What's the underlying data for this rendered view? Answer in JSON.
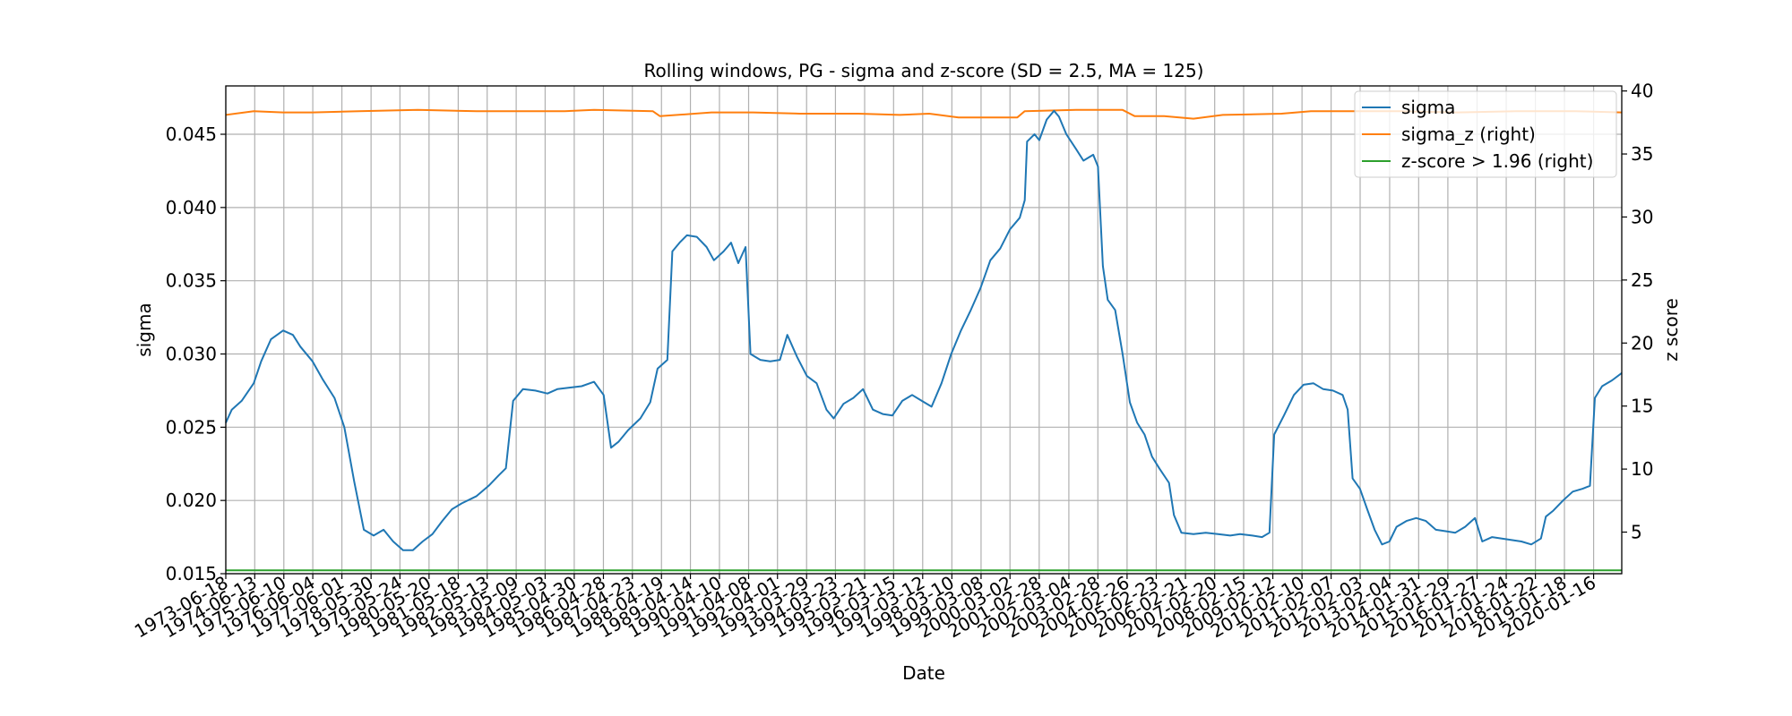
{
  "chart_data": {
    "type": "line",
    "title": "Rolling windows, PG - sigma and z-score (SD = 2.5, MA = 125)",
    "xlabel": "Date",
    "ylabel": "sigma",
    "ylabel_right": "z score",
    "ylim": [
      0.015,
      0.0483
    ],
    "ylim_right": [
      1.7,
      40.4
    ],
    "y_ticks": [
      "0.015",
      "0.020",
      "0.025",
      "0.030",
      "0.035",
      "0.040",
      "0.045"
    ],
    "y_ticks_right": [
      "5",
      "10",
      "15",
      "20",
      "25",
      "30",
      "35",
      "40"
    ],
    "x_ticks": [
      "1973-06-18",
      "1974-06-13",
      "1975-06-10",
      "1976-06-04",
      "1977-06-01",
      "1978-05-30",
      "1979-05-24",
      "1980-05-20",
      "1981-05-18",
      "1982-05-13",
      "1983-05-09",
      "1984-05-03",
      "1985-04-30",
      "1986-04-28",
      "1987-04-23",
      "1988-04-19",
      "1989-04-14",
      "1990-04-10",
      "1991-04-08",
      "1992-04-01",
      "1993-03-29",
      "1994-03-23",
      "1995-03-21",
      "1996-03-15",
      "1997-03-12",
      "1998-03-10",
      "1999-03-08",
      "2000-03-02",
      "2001-02-28",
      "2002-03-04",
      "2003-02-28",
      "2004-02-26",
      "2005-02-23",
      "2006-02-21",
      "2007-02-20",
      "2008-02-15",
      "2009-02-12",
      "2010-02-10",
      "2011-02-07",
      "2012-02-03",
      "2013-02-04",
      "2014-01-31",
      "2015-01-29",
      "2016-01-27",
      "2017-01-24",
      "2018-01-22",
      "2019-01-18",
      "2020-01-16"
    ],
    "x_range": [
      "1973-06-18",
      "2020-12-31"
    ],
    "grid": true,
    "legend_position": "top-right",
    "series": [
      {
        "name": "sigma",
        "axis": "left",
        "color": "#1f77b4",
        "points": [
          [
            "1973-06-18",
            0.0253
          ],
          [
            "1973-09-01",
            0.0262
          ],
          [
            "1974-01-01",
            0.0268
          ],
          [
            "1974-06-01",
            0.028
          ],
          [
            "1974-09-01",
            0.0295
          ],
          [
            "1975-01-01",
            0.031
          ],
          [
            "1975-06-01",
            0.0316
          ],
          [
            "1975-10-01",
            0.0313
          ],
          [
            "1976-01-01",
            0.0305
          ],
          [
            "1976-06-01",
            0.0295
          ],
          [
            "1976-10-01",
            0.0283
          ],
          [
            "1977-03-01",
            0.027
          ],
          [
            "1977-07-01",
            0.025
          ],
          [
            "1977-11-01",
            0.0213
          ],
          [
            "1978-03-01",
            0.018
          ],
          [
            "1978-07-01",
            0.0176
          ],
          [
            "1978-11-01",
            0.018
          ],
          [
            "1979-03-01",
            0.0172
          ],
          [
            "1979-07-01",
            0.0166
          ],
          [
            "1979-11-01",
            0.0166
          ],
          [
            "1980-03-01",
            0.0172
          ],
          [
            "1980-07-01",
            0.0177
          ],
          [
            "1980-11-01",
            0.0186
          ],
          [
            "1981-03-01",
            0.0194
          ],
          [
            "1981-07-01",
            0.0198
          ],
          [
            "1982-01-01",
            0.0203
          ],
          [
            "1982-06-01",
            0.021
          ],
          [
            "1982-10-01",
            0.0217
          ],
          [
            "1983-01-01",
            0.0222
          ],
          [
            "1983-04-01",
            0.0268
          ],
          [
            "1983-08-01",
            0.0276
          ],
          [
            "1984-01-01",
            0.0275
          ],
          [
            "1984-06-01",
            0.0273
          ],
          [
            "1984-10-01",
            0.0276
          ],
          [
            "1985-03-01",
            0.0277
          ],
          [
            "1985-08-01",
            0.0278
          ],
          [
            "1986-01-01",
            0.0281
          ],
          [
            "1986-05-01",
            0.0272
          ],
          [
            "1986-08-01",
            0.0236
          ],
          [
            "1986-11-01",
            0.024
          ],
          [
            "1987-03-01",
            0.0248
          ],
          [
            "1987-08-01",
            0.0256
          ],
          [
            "1987-12-01",
            0.0267
          ],
          [
            "1988-03-01",
            0.029
          ],
          [
            "1988-07-01",
            0.0296
          ],
          [
            "1988-09-01",
            0.037
          ],
          [
            "1988-12-01",
            0.0376
          ],
          [
            "1989-03-01",
            0.0381
          ],
          [
            "1989-07-01",
            0.038
          ],
          [
            "1989-11-01",
            0.0373
          ],
          [
            "1990-02-01",
            0.0364
          ],
          [
            "1990-06-01",
            0.037
          ],
          [
            "1990-09-01",
            0.0376
          ],
          [
            "1990-12-01",
            0.0362
          ],
          [
            "1991-03-01",
            0.0373
          ],
          [
            "1991-05-01",
            0.03
          ],
          [
            "1991-09-01",
            0.0296
          ],
          [
            "1992-01-01",
            0.0295
          ],
          [
            "1992-05-01",
            0.0296
          ],
          [
            "1992-08-01",
            0.0313
          ],
          [
            "1992-12-01",
            0.0298
          ],
          [
            "1993-04-01",
            0.0285
          ],
          [
            "1993-08-01",
            0.028
          ],
          [
            "1993-12-01",
            0.0262
          ],
          [
            "1994-03-01",
            0.0256
          ],
          [
            "1994-07-01",
            0.0266
          ],
          [
            "1994-11-01",
            0.027
          ],
          [
            "1995-03-01",
            0.0276
          ],
          [
            "1995-07-01",
            0.0262
          ],
          [
            "1995-11-01",
            0.0259
          ],
          [
            "1996-03-01",
            0.0258
          ],
          [
            "1996-07-01",
            0.0268
          ],
          [
            "1996-11-01",
            0.0272
          ],
          [
            "1997-03-01",
            0.0268
          ],
          [
            "1997-07-01",
            0.0264
          ],
          [
            "1997-11-01",
            0.028
          ],
          [
            "1998-03-01",
            0.03
          ],
          [
            "1998-07-01",
            0.0316
          ],
          [
            "1998-11-01",
            0.033
          ],
          [
            "1999-03-01",
            0.0345
          ],
          [
            "1999-07-01",
            0.0364
          ],
          [
            "1999-11-01",
            0.0372
          ],
          [
            "2000-03-01",
            0.0385
          ],
          [
            "2000-07-01",
            0.0393
          ],
          [
            "2000-09-01",
            0.0405
          ],
          [
            "2000-10-01",
            0.0445
          ],
          [
            "2001-01-01",
            0.045
          ],
          [
            "2001-03-01",
            0.0446
          ],
          [
            "2001-06-01",
            0.046
          ],
          [
            "2001-09-01",
            0.0466
          ],
          [
            "2001-11-01",
            0.0462
          ],
          [
            "2002-02-01",
            0.045
          ],
          [
            "2002-06-01",
            0.044
          ],
          [
            "2002-09-01",
            0.0432
          ],
          [
            "2003-01-01",
            0.0436
          ],
          [
            "2003-03-01",
            0.0428
          ],
          [
            "2003-05-01",
            0.036
          ],
          [
            "2003-07-01",
            0.0337
          ],
          [
            "2003-10-01",
            0.033
          ],
          [
            "2004-01-01",
            0.03
          ],
          [
            "2004-04-01",
            0.0267
          ],
          [
            "2004-07-01",
            0.0253
          ],
          [
            "2004-10-01",
            0.0245
          ],
          [
            "2005-01-01",
            0.023
          ],
          [
            "2005-04-01",
            0.0222
          ],
          [
            "2005-08-01",
            0.0212
          ],
          [
            "2005-10-01",
            0.019
          ],
          [
            "2006-01-01",
            0.0178
          ],
          [
            "2006-06-01",
            0.0177
          ],
          [
            "2006-11-01",
            0.0178
          ],
          [
            "2007-04-01",
            0.0177
          ],
          [
            "2007-09-01",
            0.0176
          ],
          [
            "2008-01-01",
            0.0177
          ],
          [
            "2008-06-01",
            0.0176
          ],
          [
            "2008-10-01",
            0.0175
          ],
          [
            "2009-01-01",
            0.0178
          ],
          [
            "2009-03-01",
            0.0245
          ],
          [
            "2009-07-01",
            0.0258
          ],
          [
            "2009-11-01",
            0.0272
          ],
          [
            "2010-03-01",
            0.0279
          ],
          [
            "2010-07-01",
            0.028
          ],
          [
            "2010-11-01",
            0.0276
          ],
          [
            "2011-03-01",
            0.0275
          ],
          [
            "2011-07-01",
            0.0272
          ],
          [
            "2011-09-01",
            0.0262
          ],
          [
            "2011-11-01",
            0.0215
          ],
          [
            "2012-02-01",
            0.0208
          ],
          [
            "2012-05-01",
            0.0194
          ],
          [
            "2012-08-01",
            0.018
          ],
          [
            "2012-11-01",
            0.017
          ],
          [
            "2013-02-01",
            0.0172
          ],
          [
            "2013-05-01",
            0.0182
          ],
          [
            "2013-09-01",
            0.0186
          ],
          [
            "2014-01-01",
            0.0188
          ],
          [
            "2014-05-01",
            0.0186
          ],
          [
            "2014-09-01",
            0.018
          ],
          [
            "2015-01-01",
            0.0179
          ],
          [
            "2015-05-01",
            0.0178
          ],
          [
            "2015-09-01",
            0.0182
          ],
          [
            "2016-01-01",
            0.0188
          ],
          [
            "2016-04-01",
            0.0172
          ],
          [
            "2016-08-01",
            0.0175
          ],
          [
            "2016-12-01",
            0.0174
          ],
          [
            "2017-04-01",
            0.0173
          ],
          [
            "2017-08-01",
            0.0172
          ],
          [
            "2017-12-01",
            0.017
          ],
          [
            "2018-04-01",
            0.0174
          ],
          [
            "2018-06-01",
            0.0189
          ],
          [
            "2018-09-01",
            0.0193
          ],
          [
            "2019-01-01",
            0.02
          ],
          [
            "2019-05-01",
            0.0206
          ],
          [
            "2019-09-01",
            0.0208
          ],
          [
            "2019-12-01",
            0.021
          ],
          [
            "2020-02-01",
            0.027
          ],
          [
            "2020-05-01",
            0.0278
          ],
          [
            "2020-09-01",
            0.0282
          ],
          [
            "2020-12-31",
            0.0287
          ]
        ]
      },
      {
        "name": "sigma_z (right)",
        "axis": "right",
        "color": "#ff7f0e",
        "points": [
          [
            "1973-06-18",
            38.1
          ],
          [
            "1974-06-01",
            38.4
          ],
          [
            "1975-06-01",
            38.3
          ],
          [
            "1976-06-01",
            38.3
          ],
          [
            "1978-01-01",
            38.4
          ],
          [
            "1980-01-01",
            38.5
          ],
          [
            "1982-01-01",
            38.4
          ],
          [
            "1985-01-01",
            38.4
          ],
          [
            "1986-01-01",
            38.5
          ],
          [
            "1988-01-01",
            38.4
          ],
          [
            "1988-04-01",
            38.0
          ],
          [
            "1990-01-01",
            38.3
          ],
          [
            "1991-06-01",
            38.3
          ],
          [
            "1993-01-01",
            38.2
          ],
          [
            "1995-01-01",
            38.2
          ],
          [
            "1996-06-01",
            38.1
          ],
          [
            "1997-06-01",
            38.2
          ],
          [
            "1998-06-01",
            37.9
          ],
          [
            "2000-06-01",
            37.9
          ],
          [
            "2000-09-01",
            38.4
          ],
          [
            "2002-06-01",
            38.5
          ],
          [
            "2004-01-01",
            38.5
          ],
          [
            "2004-06-01",
            38.0
          ],
          [
            "2005-06-01",
            38.0
          ],
          [
            "2006-06-01",
            37.8
          ],
          [
            "2007-06-01",
            38.1
          ],
          [
            "2009-06-01",
            38.2
          ],
          [
            "2010-06-01",
            38.4
          ],
          [
            "2013-06-01",
            38.4
          ],
          [
            "2015-06-01",
            38.3
          ],
          [
            "2017-06-01",
            38.4
          ],
          [
            "2019-06-01",
            38.4
          ],
          [
            "2020-12-31",
            38.3
          ]
        ]
      },
      {
        "name": "z-score > 1.96 (right)",
        "axis": "right",
        "color": "#2ca02c",
        "points": [
          [
            "1973-06-18",
            1.96
          ],
          [
            "2020-12-31",
            1.96
          ]
        ]
      }
    ]
  }
}
